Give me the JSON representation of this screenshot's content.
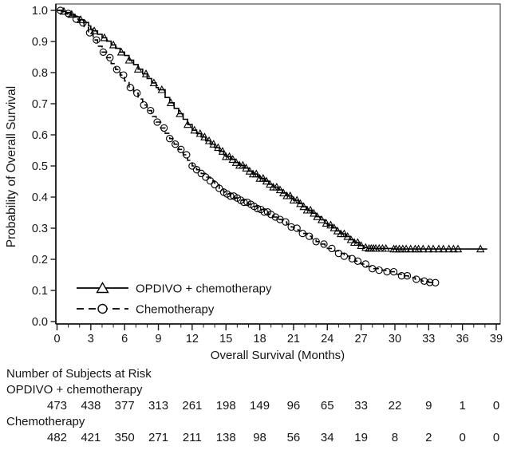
{
  "chart_data": {
    "type": "line",
    "subtype": "kaplan-meier-step",
    "title": "",
    "xlabel": "Overall Survival (Months)",
    "ylabel": "Probability of Overall Survival",
    "xlim": [
      0,
      39
    ],
    "ylim": [
      0.0,
      1.0
    ],
    "xticks": [
      0,
      3,
      6,
      9,
      12,
      15,
      18,
      21,
      24,
      27,
      30,
      33,
      36,
      39
    ],
    "x_minor_tick_step": 1,
    "yticks": [
      0.0,
      0.1,
      0.2,
      0.3,
      0.4,
      0.5,
      0.6,
      0.7,
      0.8,
      0.9,
      1.0
    ],
    "ytick_labels": [
      "0.0",
      "0.1",
      "0.2",
      "0.3",
      "0.4",
      "0.5",
      "0.6",
      "0.7",
      "0.8",
      "0.9",
      "1.0"
    ],
    "grid": false,
    "legend_position": "inside-bottom-left",
    "colors": {
      "line": "#000000",
      "frame": "#5a5a5a",
      "axis": "#1a1a1a"
    },
    "series": [
      {
        "name": "OPDIVO + chemotherapy",
        "line": "solid",
        "marker": "triangle-open",
        "points": [
          [
            0,
            1.0
          ],
          [
            0.4,
            0.997
          ],
          [
            0.8,
            0.993
          ],
          [
            1.2,
            0.987
          ],
          [
            1.6,
            0.979
          ],
          [
            2.0,
            0.97
          ],
          [
            2.4,
            0.961
          ],
          [
            2.8,
            0.95
          ],
          [
            3.0,
            0.94
          ],
          [
            3.2,
            0.934
          ],
          [
            3.6,
            0.923
          ],
          [
            4.0,
            0.912
          ],
          [
            4.4,
            0.901
          ],
          [
            4.8,
            0.889
          ],
          [
            5.2,
            0.878
          ],
          [
            5.6,
            0.866
          ],
          [
            6.0,
            0.855
          ],
          [
            6.4,
            0.84
          ],
          [
            6.8,
            0.826
          ],
          [
            7.2,
            0.811
          ],
          [
            7.6,
            0.796
          ],
          [
            8.0,
            0.781
          ],
          [
            8.4,
            0.767
          ],
          [
            8.8,
            0.752
          ],
          [
            9.0,
            0.745
          ],
          [
            9.6,
            0.72
          ],
          [
            10.0,
            0.703
          ],
          [
            10.4,
            0.685
          ],
          [
            10.8,
            0.668
          ],
          [
            11.2,
            0.65
          ],
          [
            11.6,
            0.633
          ],
          [
            12.0,
            0.615
          ],
          [
            12.4,
            0.604
          ],
          [
            12.8,
            0.593
          ],
          [
            13.2,
            0.581
          ],
          [
            13.6,
            0.57
          ],
          [
            14.0,
            0.559
          ],
          [
            14.4,
            0.547
          ],
          [
            14.8,
            0.536
          ],
          [
            15.0,
            0.53
          ],
          [
            15.4,
            0.521
          ],
          [
            15.8,
            0.511
          ],
          [
            16.2,
            0.502
          ],
          [
            16.6,
            0.493
          ],
          [
            17.0,
            0.483
          ],
          [
            17.4,
            0.474
          ],
          [
            17.8,
            0.465
          ],
          [
            18.0,
            0.46
          ],
          [
            18.4,
            0.451
          ],
          [
            18.8,
            0.441
          ],
          [
            19.2,
            0.432
          ],
          [
            19.6,
            0.423
          ],
          [
            20.0,
            0.413
          ],
          [
            20.4,
            0.404
          ],
          [
            20.8,
            0.395
          ],
          [
            21.0,
            0.39
          ],
          [
            21.4,
            0.379
          ],
          [
            21.8,
            0.369
          ],
          [
            22.2,
            0.358
          ],
          [
            22.6,
            0.348
          ],
          [
            23.0,
            0.337
          ],
          [
            23.4,
            0.327
          ],
          [
            23.8,
            0.316
          ],
          [
            24.0,
            0.31
          ],
          [
            24.4,
            0.301
          ],
          [
            24.8,
            0.291
          ],
          [
            25.2,
            0.282
          ],
          [
            25.6,
            0.273
          ],
          [
            26.0,
            0.263
          ],
          [
            26.4,
            0.254
          ],
          [
            26.8,
            0.244
          ],
          [
            27.2,
            0.238
          ],
          [
            27.6,
            0.235
          ],
          [
            29.8,
            0.233
          ],
          [
            38.2,
            0.233
          ]
        ],
        "censor_months": [
          0.6,
          1.3,
          2.1,
          3.3,
          4.2,
          5.0,
          5.7,
          6.4,
          7.2,
          7.9,
          8.6,
          9.3,
          10.1,
          10.9,
          11.6,
          12.2,
          12.7,
          13.1,
          13.5,
          13.9,
          14.3,
          14.7,
          15.0,
          15.3,
          15.6,
          15.9,
          16.2,
          16.5,
          16.8,
          17.1,
          17.4,
          17.7,
          18.0,
          18.3,
          18.6,
          18.9,
          19.2,
          19.5,
          19.8,
          20.1,
          20.4,
          20.7,
          21.0,
          21.3,
          21.6,
          21.9,
          22.2,
          22.5,
          22.8,
          23.1,
          23.5,
          23.9,
          24.3,
          24.6,
          24.9,
          25.2,
          25.5,
          25.8,
          26.1,
          26.4,
          26.7,
          27.0,
          27.4,
          27.7,
          27.9,
          28.1,
          28.3,
          28.6,
          28.9,
          29.2,
          29.9,
          30.1,
          30.4,
          30.7,
          31.0,
          31.4,
          31.8,
          32.1,
          32.5,
          33.0,
          33.4,
          33.9,
          34.3,
          34.8,
          35.2,
          35.6,
          37.6
        ]
      },
      {
        "name": "Chemotherapy",
        "line": "dashed",
        "marker": "circle-open",
        "points": [
          [
            0,
            1.0
          ],
          [
            0.4,
            0.996
          ],
          [
            0.8,
            0.99
          ],
          [
            1.2,
            0.982
          ],
          [
            1.6,
            0.972
          ],
          [
            2.0,
            0.96
          ],
          [
            2.4,
            0.945
          ],
          [
            2.8,
            0.928
          ],
          [
            3.2,
            0.905
          ],
          [
            3.6,
            0.885
          ],
          [
            4.0,
            0.866
          ],
          [
            4.4,
            0.848
          ],
          [
            4.8,
            0.829
          ],
          [
            5.2,
            0.81
          ],
          [
            5.6,
            0.792
          ],
          [
            6.0,
            0.773
          ],
          [
            6.4,
            0.752
          ],
          [
            6.8,
            0.734
          ],
          [
            7.2,
            0.715
          ],
          [
            7.6,
            0.696
          ],
          [
            8.0,
            0.678
          ],
          [
            8.4,
            0.659
          ],
          [
            8.8,
            0.641
          ],
          [
            9.2,
            0.622
          ],
          [
            9.6,
            0.605
          ],
          [
            10.0,
            0.588
          ],
          [
            10.4,
            0.57
          ],
          [
            10.8,
            0.553
          ],
          [
            11.2,
            0.536
          ],
          [
            11.6,
            0.518
          ],
          [
            12.0,
            0.5
          ],
          [
            12.4,
            0.488
          ],
          [
            12.8,
            0.476
          ],
          [
            13.2,
            0.464
          ],
          [
            13.6,
            0.452
          ],
          [
            14.0,
            0.44
          ],
          [
            14.4,
            0.428
          ],
          [
            14.8,
            0.416
          ],
          [
            15.0,
            0.41
          ],
          [
            15.4,
            0.403
          ],
          [
            15.8,
            0.397
          ],
          [
            16.2,
            0.39
          ],
          [
            16.6,
            0.383
          ],
          [
            17.0,
            0.377
          ],
          [
            17.4,
            0.37
          ],
          [
            17.8,
            0.363
          ],
          [
            18.0,
            0.36
          ],
          [
            18.4,
            0.352
          ],
          [
            18.8,
            0.344
          ],
          [
            19.2,
            0.336
          ],
          [
            19.6,
            0.328
          ],
          [
            20.0,
            0.32
          ],
          [
            20.4,
            0.312
          ],
          [
            20.8,
            0.304
          ],
          [
            21.0,
            0.3
          ],
          [
            21.4,
            0.291
          ],
          [
            21.8,
            0.283
          ],
          [
            22.2,
            0.274
          ],
          [
            22.6,
            0.266
          ],
          [
            23.0,
            0.257
          ],
          [
            23.4,
            0.249
          ],
          [
            23.8,
            0.24
          ],
          [
            24.0,
            0.235
          ],
          [
            24.5,
            0.227
          ],
          [
            25.0,
            0.219
          ],
          [
            25.5,
            0.21
          ],
          [
            26.0,
            0.202
          ],
          [
            26.5,
            0.194
          ],
          [
            27.0,
            0.185
          ],
          [
            27.5,
            0.177
          ],
          [
            28.0,
            0.17
          ],
          [
            28.6,
            0.165
          ],
          [
            29.2,
            0.16
          ],
          [
            30.0,
            0.152
          ],
          [
            30.6,
            0.147
          ],
          [
            31.2,
            0.141
          ],
          [
            31.8,
            0.136
          ],
          [
            32.4,
            0.13
          ],
          [
            33.0,
            0.126
          ],
          [
            33.6,
            0.125
          ]
        ],
        "censor_months": [
          0.3,
          1.0,
          1.7,
          2.3,
          2.9,
          3.5,
          4.1,
          4.7,
          5.3,
          5.9,
          6.5,
          7.1,
          7.7,
          8.3,
          8.9,
          9.5,
          10.0,
          10.5,
          11.0,
          11.5,
          12.0,
          12.4,
          12.8,
          13.2,
          13.6,
          14.0,
          14.4,
          14.8,
          15.1,
          15.4,
          15.7,
          16.0,
          16.3,
          16.6,
          16.9,
          17.2,
          17.5,
          17.8,
          18.1,
          18.4,
          18.7,
          19.0,
          19.4,
          19.8,
          20.3,
          20.8,
          21.3,
          21.8,
          22.4,
          23.0,
          23.7,
          24.4,
          25.0,
          25.5,
          26.2,
          26.7,
          27.4,
          28.0,
          28.6,
          29.3,
          29.9,
          30.6,
          31.1,
          31.9,
          32.6,
          33.1,
          33.6
        ]
      }
    ],
    "risk_table": {
      "title": "Number of Subjects at Risk",
      "months": [
        0,
        3,
        6,
        9,
        12,
        15,
        18,
        21,
        24,
        27,
        30,
        33,
        36,
        39
      ],
      "rows": [
        {
          "label": "OPDIVO + chemotherapy",
          "counts": [
            473,
            438,
            377,
            313,
            261,
            198,
            149,
            96,
            65,
            33,
            22,
            9,
            1,
            0
          ]
        },
        {
          "label": "Chemotherapy",
          "counts": [
            482,
            421,
            350,
            271,
            211,
            138,
            98,
            56,
            34,
            19,
            8,
            2,
            0,
            0
          ]
        }
      ]
    }
  }
}
